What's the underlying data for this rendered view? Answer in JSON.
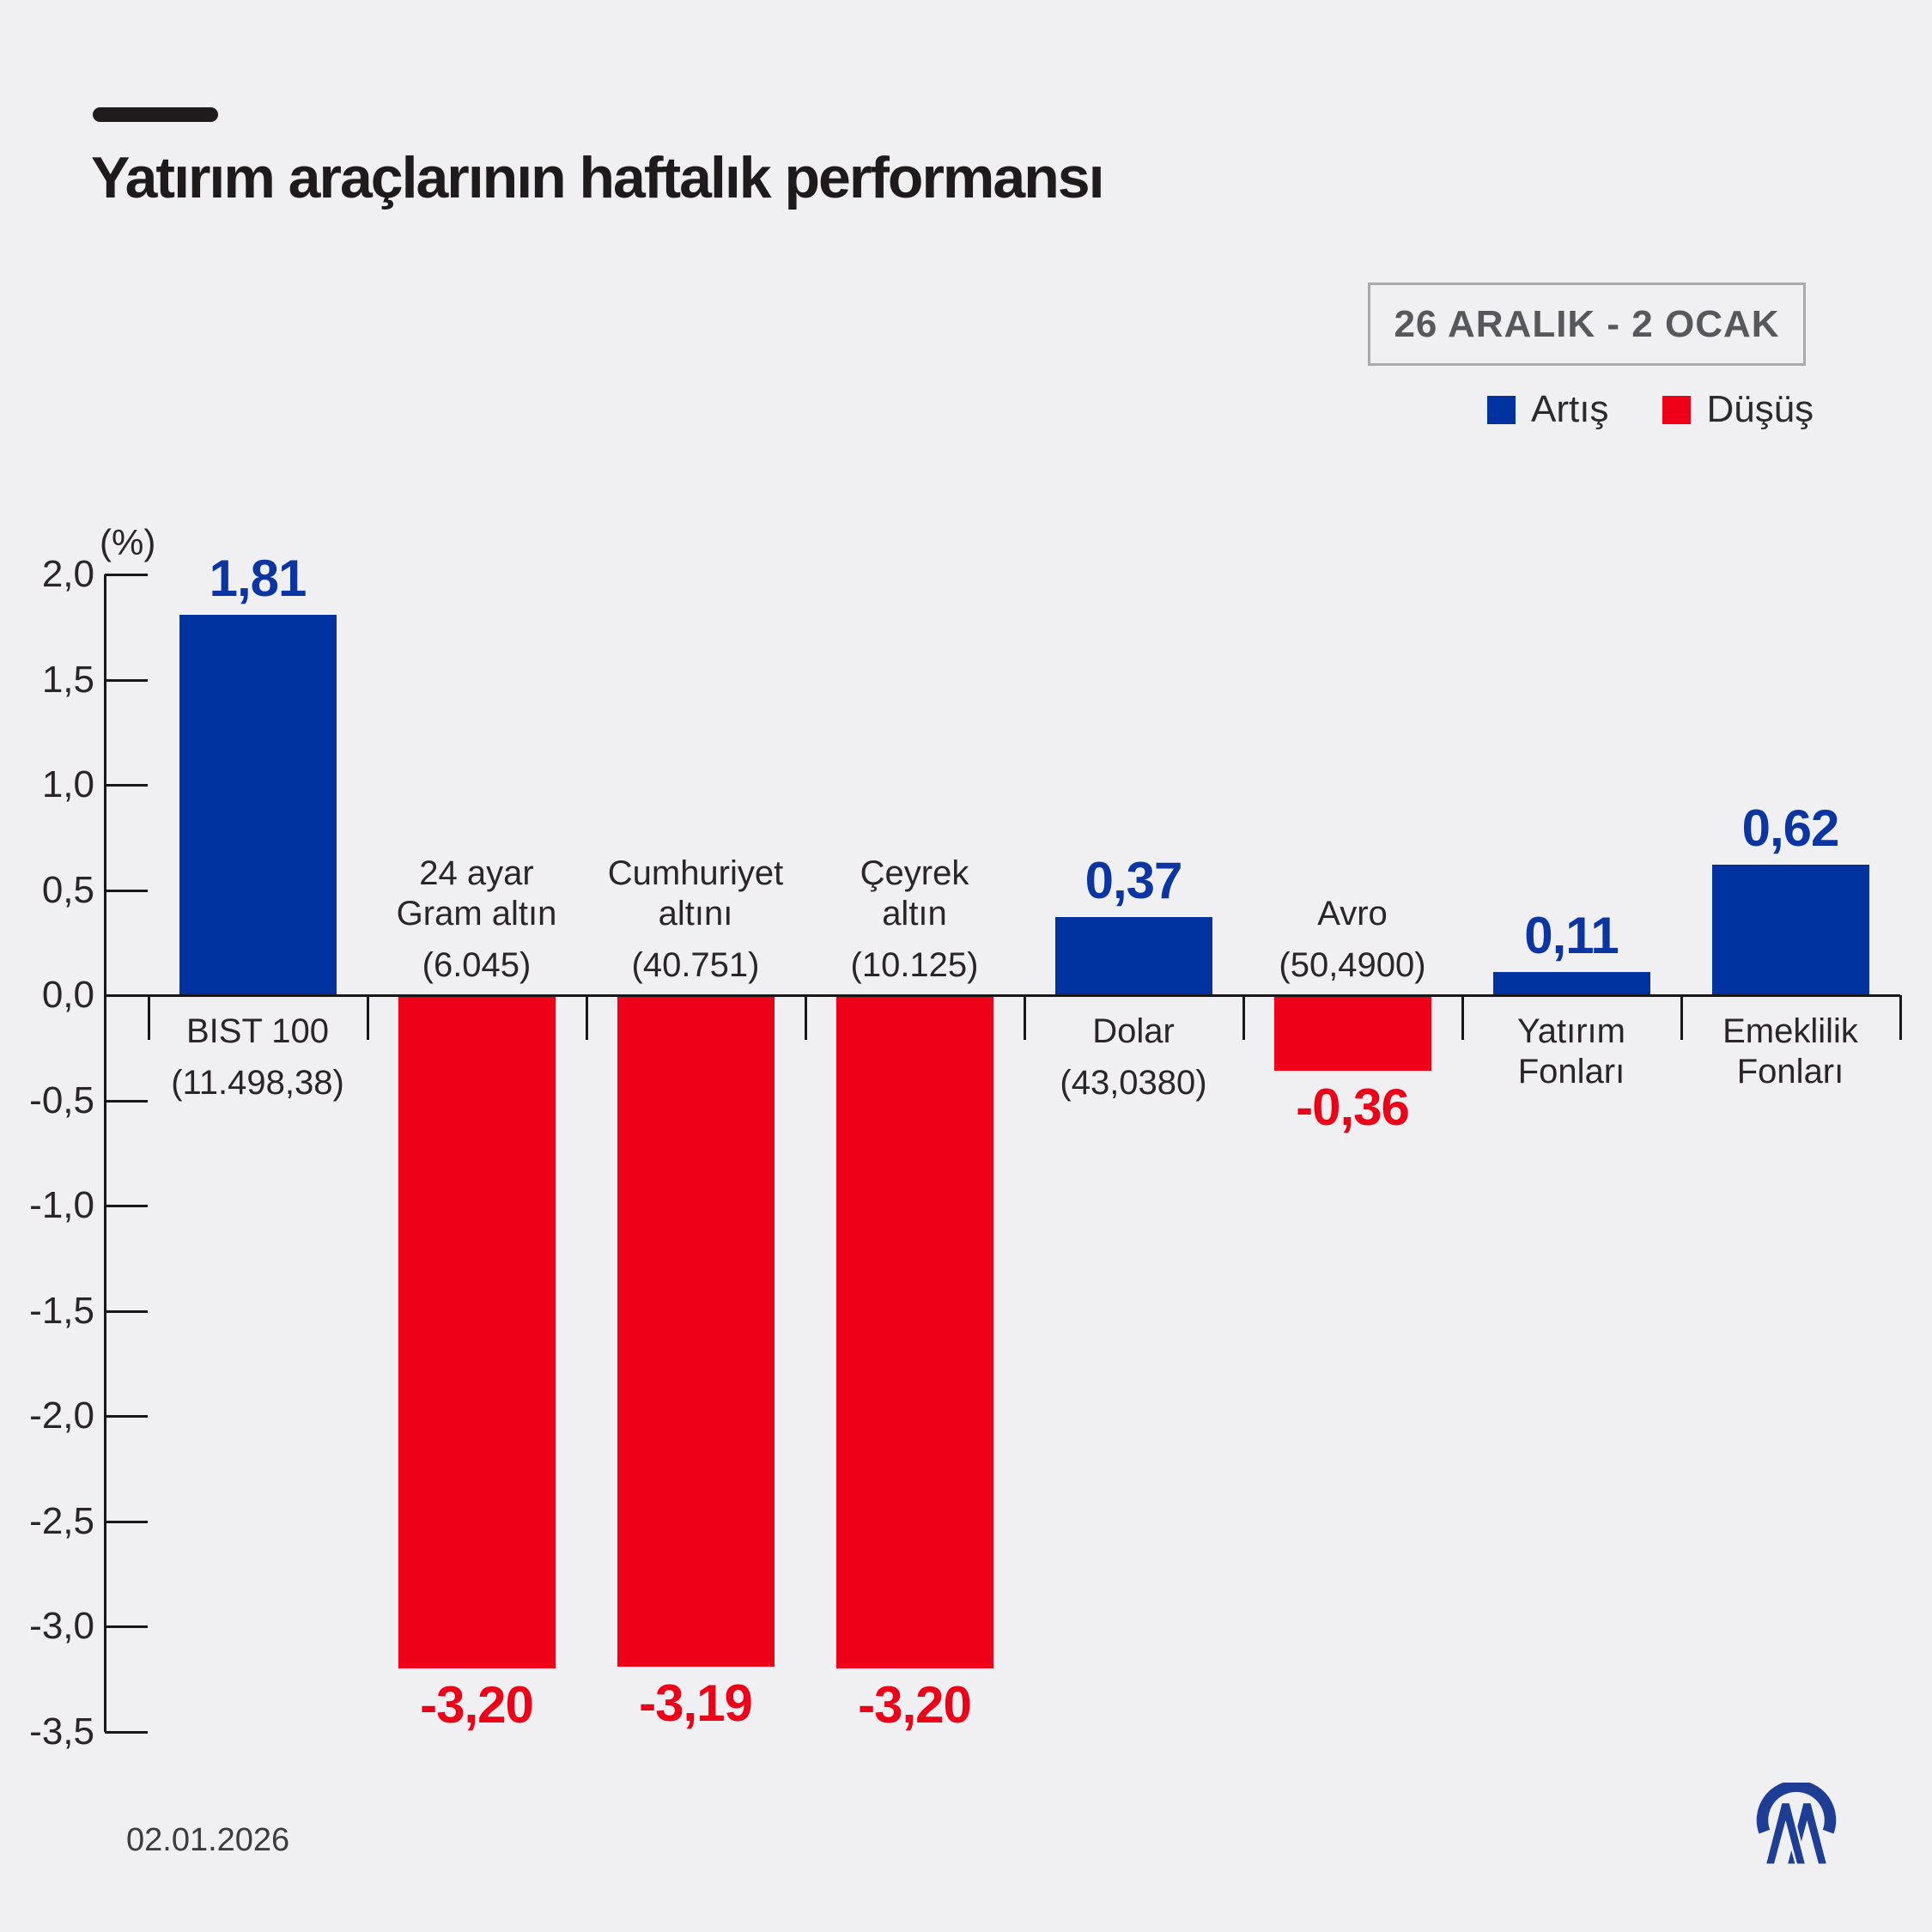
{
  "title": "Yatırım araçlarının haftalık performansı",
  "period_badge": "26 ARALIK - 2 OCAK",
  "legend": {
    "increase": "Artış",
    "decrease": "Düşüş"
  },
  "date": "02.01.2026",
  "logo": "aa-logo",
  "colors": {
    "background": "#f0eff1",
    "increase": "#0033a0",
    "decrease": "#ee0019",
    "increase_label": "#0a35a2",
    "decrease_label": "#ed0017",
    "axis": "#1a1718",
    "title_text": "#1f1b1c"
  },
  "chart_data": {
    "type": "bar",
    "title": "Yatırım araçlarının haftalık performansı",
    "unit_label": "(%)",
    "ylabel": "(%)",
    "xlabel": "",
    "ylim": [
      -3.5,
      2.0
    ],
    "ytick_step": 0.5,
    "yticks": [
      "2,0",
      "1,5",
      "1,0",
      "0,5",
      "0,0",
      "-0,5",
      "-1,0",
      "-1,5",
      "-2,0",
      "-2,5",
      "-3,0",
      "-3,5"
    ],
    "grid": false,
    "legend_position": "top-right",
    "categories": [
      "BIST 100",
      "24 ayar Gram altın",
      "Cumhuriyet altını",
      "Çeyrek altın",
      "Dolar",
      "Avro",
      "Yatırım Fonları",
      "Emeklilik Fonları"
    ],
    "values": [
      1.81,
      -3.2,
      -3.19,
      -3.2,
      0.37,
      -0.36,
      0.11,
      0.62
    ],
    "bars": [
      {
        "name_lines": [
          "BIST 100"
        ],
        "detail": "(11.498,38)",
        "value": 1.81,
        "value_label": "1,81",
        "direction": "up"
      },
      {
        "name_lines": [
          "24 ayar",
          "Gram altın"
        ],
        "detail": "(6.045)",
        "value": -3.2,
        "value_label": "-3,20",
        "direction": "down"
      },
      {
        "name_lines": [
          "Cumhuriyet",
          "altını"
        ],
        "detail": "(40.751)",
        "value": -3.19,
        "value_label": "-3,19",
        "direction": "down"
      },
      {
        "name_lines": [
          "Çeyrek",
          "altın"
        ],
        "detail": "(10.125)",
        "value": -3.2,
        "value_label": "-3,20",
        "direction": "down"
      },
      {
        "name_lines": [
          "Dolar"
        ],
        "detail": "(43,0380)",
        "value": 0.37,
        "value_label": "0,37",
        "direction": "up"
      },
      {
        "name_lines": [
          "Avro"
        ],
        "detail": "(50,4900)",
        "value": -0.36,
        "value_label": "-0,36",
        "direction": "down"
      },
      {
        "name_lines": [
          "Yatırım",
          "Fonları"
        ],
        "detail": null,
        "value": 0.11,
        "value_label": "0,11",
        "direction": "up"
      },
      {
        "name_lines": [
          "Emeklilik",
          "Fonları"
        ],
        "detail": null,
        "value": 0.62,
        "value_label": "0,62",
        "direction": "up"
      }
    ]
  }
}
